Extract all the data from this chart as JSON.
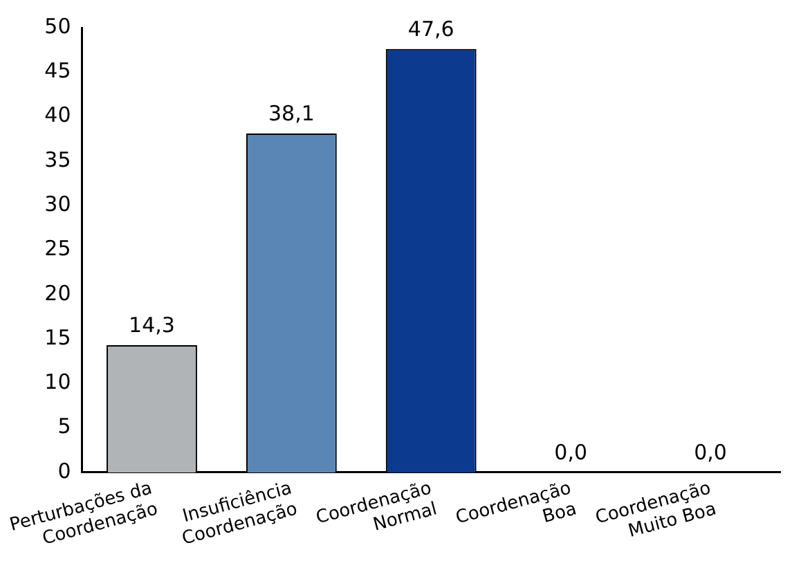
{
  "chart_data": {
    "type": "bar",
    "categories": [
      "Perturbações da\nCoordenação",
      "Insuficiência\nCoordenação",
      "Coordenação\nNormal",
      "Coordenação\nBoa",
      "Coordenação\nMuito Boa"
    ],
    "values": [
      14.3,
      38.1,
      47.6,
      0.0,
      0.0
    ],
    "colors": [
      "#b1b4b7",
      "#5a86b6",
      "#0b3a8e",
      "#0b3a8e",
      "#0b3a8e"
    ],
    "value_labels": [
      "14,3",
      "38,1",
      "47,6",
      "0,0",
      "0,0"
    ],
    "ylim": [
      0,
      50
    ],
    "yticks": [
      0,
      5,
      10,
      15,
      20,
      25,
      30,
      35,
      40,
      45,
      50
    ],
    "grid": false,
    "legend": false
  }
}
